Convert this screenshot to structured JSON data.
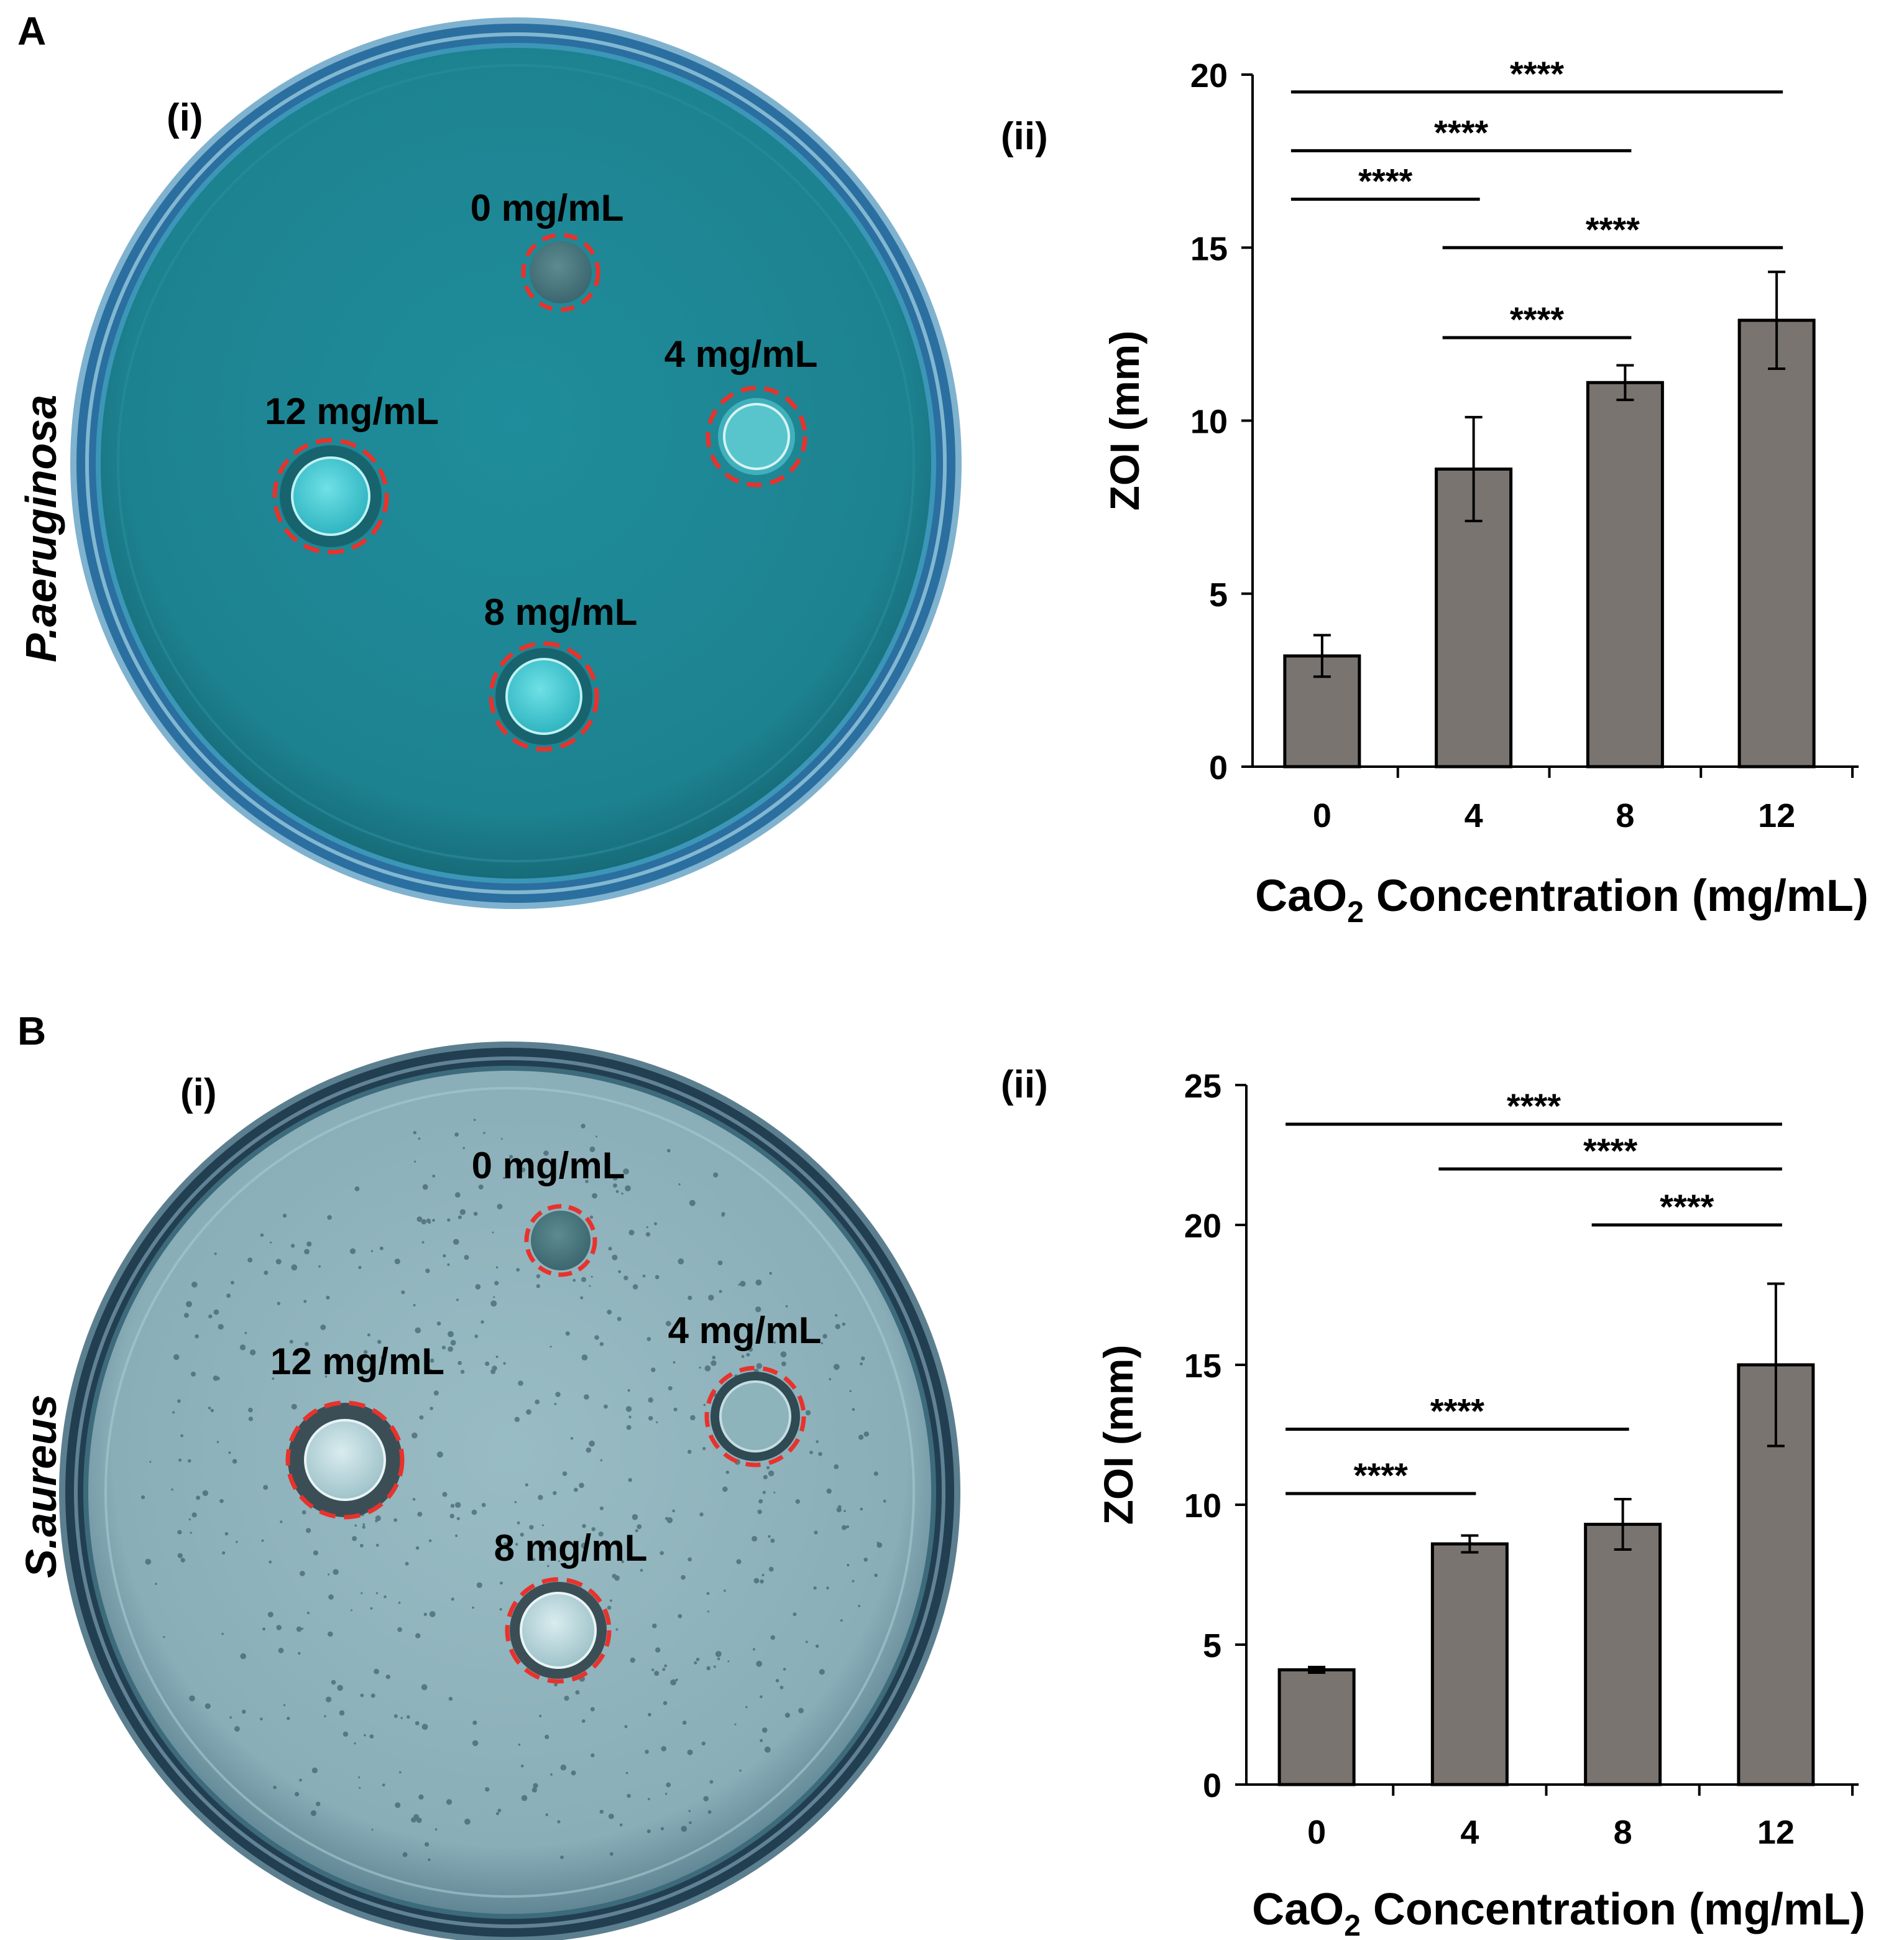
{
  "panels": [
    {
      "letter": "A",
      "photo_label": "(i)",
      "chart_label": "(ii)",
      "organism": "P.aeruginosa",
      "agar_color": "#1f8a98",
      "agar_edge_color": "#1b7683",
      "wells": [
        {
          "label": "0 mg/mL",
          "value_mg_per_ml": 0
        },
        {
          "label": "4 mg/mL",
          "value_mg_per_ml": 4
        },
        {
          "label": "12 mg/mL",
          "value_mg_per_ml": 12
        },
        {
          "label": "8 mg/mL",
          "value_mg_per_ml": 8
        }
      ]
    },
    {
      "letter": "B",
      "photo_label": "(i)",
      "chart_label": "(ii)",
      "organism": "S.aureus",
      "agar_color": "#8fb4bd",
      "agar_edge_color": "#2e5566",
      "wells": [
        {
          "label": "0 mg/mL",
          "value_mg_per_ml": 0
        },
        {
          "label": "4 mg/mL",
          "value_mg_per_ml": 4
        },
        {
          "label": "12 mg/mL",
          "value_mg_per_ml": 12
        },
        {
          "label": "8 mg/mL",
          "value_mg_per_ml": 8
        }
      ]
    }
  ],
  "chart_data": [
    {
      "type": "bar",
      "categories": [
        "0",
        "4",
        "8",
        "12"
      ],
      "values": [
        3.2,
        8.6,
        11.1,
        12.9
      ],
      "errors": [
        0.6,
        1.5,
        0.5,
        1.4
      ],
      "ylabel": "ZOI (mm)",
      "xlabel_prefix": "CaO",
      "xlabel_subscript": "2",
      "xlabel_suffix": " Concentration (mg/mL)",
      "ylim": [
        0,
        20
      ],
      "yticks": [
        "0",
        "5",
        "10",
        "15",
        "20"
      ],
      "bar_color": "#7a7470",
      "grid": false,
      "significance": [
        {
          "from": "0",
          "to": "12",
          "y": 19.5,
          "label": "****"
        },
        {
          "from": "0",
          "to": "8",
          "y": 17.8,
          "label": "****"
        },
        {
          "from": "0",
          "to": "4",
          "y": 16.4,
          "label": "****"
        },
        {
          "from": "4",
          "to": "12",
          "y": 15.0,
          "label": "****"
        },
        {
          "from": "4",
          "to": "8",
          "y": 12.4,
          "label": "****"
        }
      ]
    },
    {
      "type": "bar",
      "categories": [
        "0",
        "4",
        "8",
        "12"
      ],
      "values": [
        4.1,
        8.6,
        9.3,
        15.0
      ],
      "errors": [
        0.1,
        0.3,
        0.9,
        2.9
      ],
      "ylabel": "ZOI (mm)",
      "xlabel_prefix": "CaO",
      "xlabel_subscript": "2",
      "xlabel_suffix": " Concentration (mg/mL)",
      "ylim": [
        0,
        25
      ],
      "yticks": [
        "0",
        "5",
        "10",
        "15",
        "20",
        "25"
      ],
      "bar_color": "#7a7470",
      "grid": false,
      "significance": [
        {
          "from": "0",
          "to": "12",
          "y": 23.6,
          "label": "****"
        },
        {
          "from": "4",
          "to": "12",
          "y": 22.0,
          "label": "****"
        },
        {
          "from": "8",
          "to": "12",
          "y": 20.0,
          "label": "****"
        },
        {
          "from": "0",
          "to": "8",
          "y": 12.7,
          "label": "****"
        },
        {
          "from": "0",
          "to": "4",
          "y": 10.4,
          "label": "****"
        }
      ]
    }
  ]
}
